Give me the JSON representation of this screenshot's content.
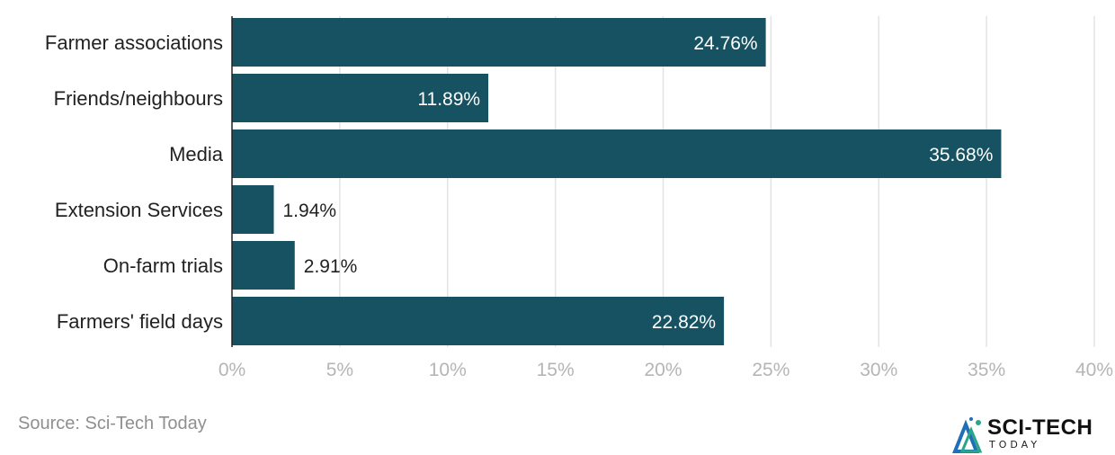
{
  "chart_data": {
    "type": "bar",
    "orientation": "horizontal",
    "categories": [
      "Farmer associations",
      "Friends/neighbours",
      "Media",
      "Extension Services",
      "On-farm trials",
      "Farmers' field days"
    ],
    "values": [
      24.76,
      11.89,
      35.68,
      1.94,
      2.91,
      22.82
    ],
    "value_labels": [
      "24.76%",
      "11.89%",
      "35.68%",
      "1.94%",
      "2.91%",
      "22.82%"
    ],
    "xlim": [
      0,
      40
    ],
    "x_ticks": [
      0,
      5,
      10,
      15,
      20,
      25,
      30,
      35,
      40
    ],
    "x_tick_labels": [
      "0%",
      "5%",
      "10%",
      "15%",
      "20%",
      "25%",
      "30%",
      "35%",
      "40%"
    ],
    "grid": true,
    "legend": "none",
    "colors": {
      "bar": "#165261",
      "grid": "#e3e3e3",
      "axis": "#222222"
    }
  },
  "footer": {
    "source": "Source: Sci-Tech Today",
    "logo_main": "SCI-TECH",
    "logo_sub": "TODAY",
    "logo_icon": "sci-tech-logo-icon"
  }
}
